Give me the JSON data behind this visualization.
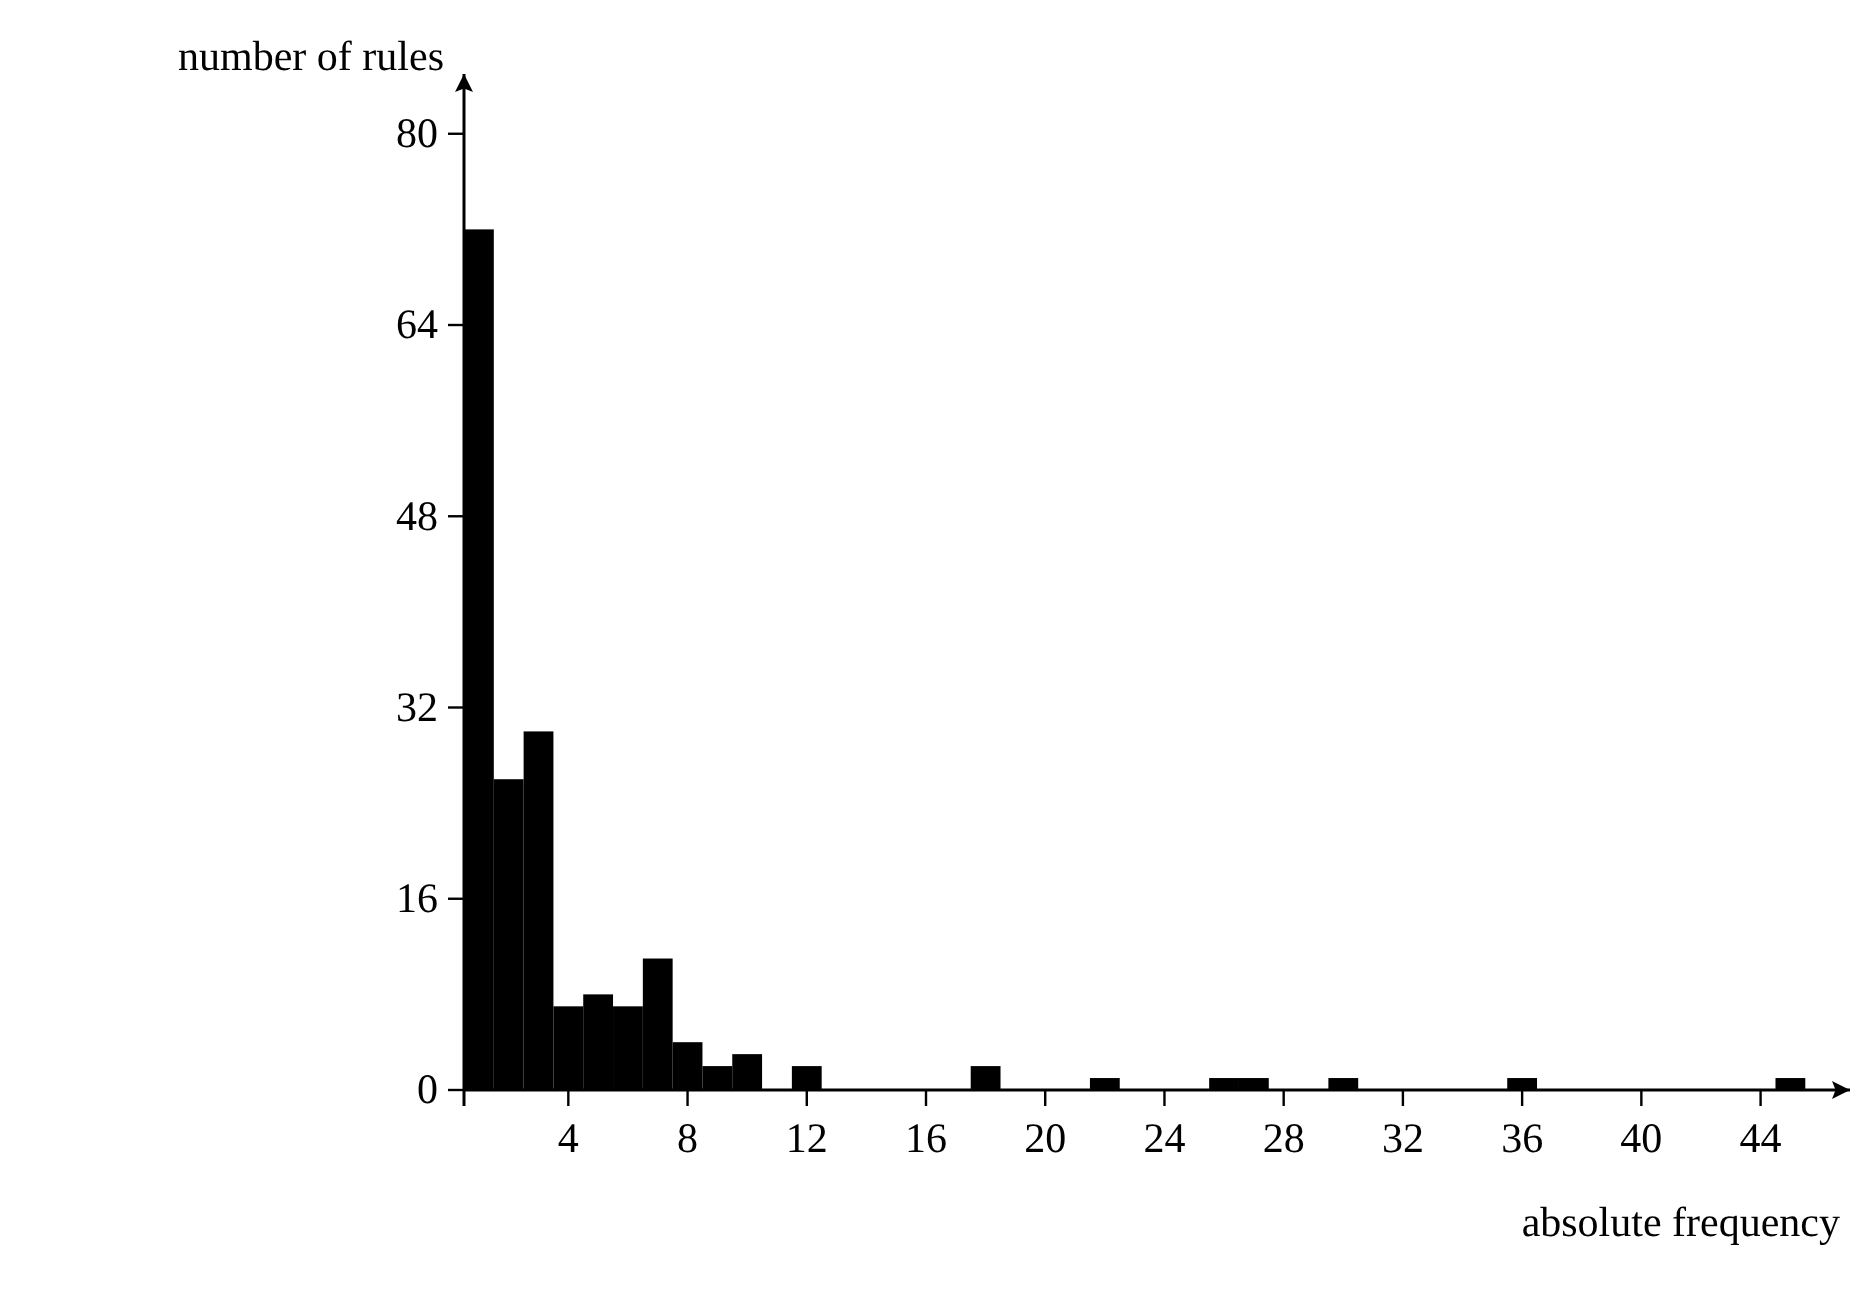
{
  "chart_data": {
    "type": "histogram",
    "xlabel": "absolute frequency",
    "ylabel": "number of rules",
    "color": "#000000",
    "bins": [
      0.5,
      1.5,
      2.5,
      3.5,
      4.5,
      5.5,
      6.5,
      7.5,
      8.5,
      9.5,
      10.5,
      11.5,
      12.5,
      13.5,
      14.5,
      15.5,
      16.5,
      17.5,
      18.5,
      19.5,
      20.5,
      21.5,
      22.5,
      23.5,
      24.5,
      25.5,
      26.5,
      27.5,
      28.5,
      29.5,
      30.5,
      31.5,
      32.5,
      33.5,
      34.5,
      35.5,
      36.5,
      37.5,
      38.5,
      39.5,
      40.5,
      41.5,
      42.5,
      43.5,
      44.5,
      45.5
    ],
    "values": [
      72,
      26,
      30,
      7,
      8,
      7,
      11,
      4,
      2,
      3,
      0,
      2,
      0,
      0,
      0,
      0,
      0,
      2,
      0,
      0,
      0,
      1,
      0,
      0,
      0,
      1,
      1,
      0,
      0,
      1,
      0,
      0,
      0,
      0,
      0,
      1,
      0,
      0,
      0,
      0,
      0,
      0,
      0,
      0,
      1
    ],
    "xlim": [
      0.5,
      47
    ],
    "ylim": [
      0,
      85
    ],
    "xticks": [
      4,
      8,
      12,
      16,
      20,
      24,
      28,
      32,
      36,
      40,
      44
    ],
    "yticks": [
      0,
      16,
      32,
      48,
      64,
      80
    ]
  }
}
